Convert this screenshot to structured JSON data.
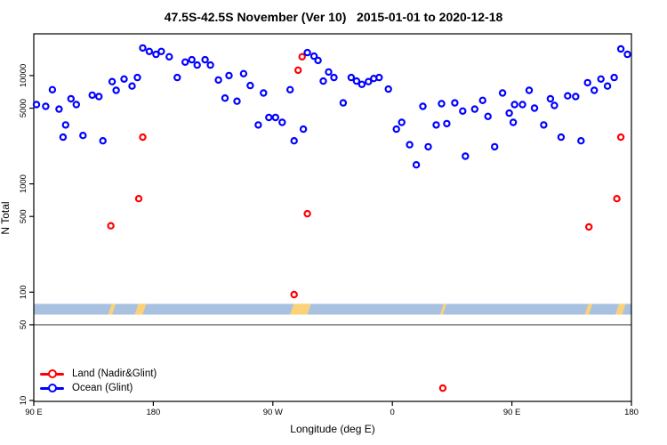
{
  "title": "47.5S-42.5S November (Ver 10)   2015-01-01 to 2020-12-18",
  "legend": {
    "items": [
      {
        "label": "Land (Nadir&Glint)",
        "color": "#ff0000"
      },
      {
        "label": "Ocean (Glint)",
        "color": "#0000ff"
      }
    ]
  },
  "chart_data": {
    "type": "scatter",
    "title": "47.5S-42.5S November (Ver 10)   2015-01-01 to 2020-12-18",
    "xlabel": "Longitude (deg E)",
    "ylabel": "N Total",
    "y_scale": "log",
    "xlim": [
      90,
      540
    ],
    "ylim": [
      9.8,
      24300
    ],
    "x_axis_note": "wrapped longitude axis: 90E -> 180 -> 90W -> 0 -> 90E -> 180, stored as 90..540 deg",
    "x_ticks": [
      {
        "pos": 90,
        "label": "90 E"
      },
      {
        "pos": 180,
        "label": "180"
      },
      {
        "pos": 270,
        "label": "90 W"
      },
      {
        "pos": 360,
        "label": "0"
      },
      {
        "pos": 450,
        "label": "90 E"
      },
      {
        "pos": 540,
        "label": "180"
      }
    ],
    "y_ticks": [
      {
        "pos": 10000,
        "label": "10000"
      },
      {
        "pos": 5000,
        "label": "5000"
      },
      {
        "pos": 1000,
        "label": "1000"
      },
      {
        "pos": 500,
        "label": "500"
      },
      {
        "pos": 100,
        "label": "100"
      },
      {
        "pos": 50,
        "label": "50"
      },
      {
        "pos": 10,
        "label": "10"
      }
    ],
    "grid": false,
    "legend_position": "bottom-left",
    "series": [
      {
        "name": "Land (Nadir&Glint)",
        "color": "#ff0000",
        "marker": "open-circle",
        "points": [
          [
            148,
            410
          ],
          [
            169,
            730
          ],
          [
            172,
            2700
          ],
          [
            286,
            95
          ],
          [
            289,
            11200
          ],
          [
            292,
            14900
          ],
          [
            296,
            530
          ],
          [
            398,
            13
          ],
          [
            508,
            400
          ],
          [
            529,
            730
          ],
          [
            532,
            2700
          ]
        ]
      },
      {
        "name": "Ocean (Glint)",
        "color": "#0000ff",
        "marker": "open-circle",
        "points": [
          [
            92,
            5400
          ],
          [
            99,
            5200
          ],
          [
            104,
            7400
          ],
          [
            109,
            4900
          ],
          [
            112,
            2700
          ],
          [
            114,
            3500
          ],
          [
            118,
            6100
          ],
          [
            122,
            5400
          ],
          [
            127,
            2800
          ],
          [
            134,
            6600
          ],
          [
            139,
            6400
          ],
          [
            142,
            2500
          ],
          [
            149,
            8800
          ],
          [
            152,
            7300
          ],
          [
            158,
            9300
          ],
          [
            164,
            8000
          ],
          [
            168,
            9600
          ],
          [
            172,
            18000
          ],
          [
            177,
            16700
          ],
          [
            182,
            15700
          ],
          [
            186,
            16700
          ],
          [
            192,
            14900
          ],
          [
            198,
            9600
          ],
          [
            204,
            13300
          ],
          [
            209,
            14000
          ],
          [
            213,
            12500
          ],
          [
            219,
            14000
          ],
          [
            223,
            12500
          ],
          [
            229,
            9100
          ],
          [
            234,
            6200
          ],
          [
            237,
            10000
          ],
          [
            243,
            5800
          ],
          [
            248,
            10400
          ],
          [
            253,
            8100
          ],
          [
            259,
            3500
          ],
          [
            263,
            6900
          ],
          [
            267,
            4100
          ],
          [
            272,
            4100
          ],
          [
            277,
            3700
          ],
          [
            283,
            7400
          ],
          [
            286,
            2500
          ],
          [
            293,
            3200
          ],
          [
            296,
            16300
          ],
          [
            301,
            15100
          ],
          [
            304,
            13800
          ],
          [
            308,
            8900
          ],
          [
            312,
            10800
          ],
          [
            316,
            9600
          ],
          [
            323,
            5600
          ],
          [
            329,
            9600
          ],
          [
            333,
            8900
          ],
          [
            337,
            8300
          ],
          [
            342,
            8800
          ],
          [
            346,
            9400
          ],
          [
            350,
            9600
          ],
          [
            357,
            7500
          ],
          [
            363,
            3200
          ],
          [
            367,
            3700
          ],
          [
            373,
            2300
          ],
          [
            378,
            1500
          ],
          [
            383,
            5200
          ],
          [
            387,
            2200
          ],
          [
            393,
            3500
          ],
          [
            397,
            5500
          ],
          [
            401,
            3600
          ],
          [
            407,
            5600
          ],
          [
            413,
            4700
          ],
          [
            415,
            1800
          ],
          [
            422,
            4900
          ],
          [
            428,
            5900
          ],
          [
            432,
            4200
          ],
          [
            437,
            2200
          ],
          [
            443,
            6900
          ],
          [
            448,
            4500
          ],
          [
            451,
            3700
          ],
          [
            452,
            5400
          ],
          [
            458,
            5400
          ],
          [
            463,
            7300
          ],
          [
            467,
            5000
          ],
          [
            474,
            3500
          ],
          [
            479,
            6100
          ],
          [
            482,
            5300
          ],
          [
            487,
            2700
          ],
          [
            492,
            6500
          ],
          [
            498,
            6400
          ],
          [
            502,
            2500
          ],
          [
            507,
            8600
          ],
          [
            512,
            7300
          ],
          [
            517,
            9300
          ],
          [
            522,
            8000
          ],
          [
            527,
            9600
          ],
          [
            532,
            17600
          ],
          [
            537,
            15700
          ]
        ]
      }
    ],
    "band": {
      "n_range": [
        62,
        78
      ],
      "color": "#a9c1e0",
      "patch_color": "#fbd277",
      "patches": [
        [
          146,
          3
        ],
        [
          166,
          6
        ],
        [
          283,
          13
        ],
        [
          396,
          2
        ],
        [
          505,
          3
        ],
        [
          528,
          5
        ]
      ]
    },
    "ref_line": {
      "n": 50,
      "color": "#6e6e6e"
    }
  }
}
